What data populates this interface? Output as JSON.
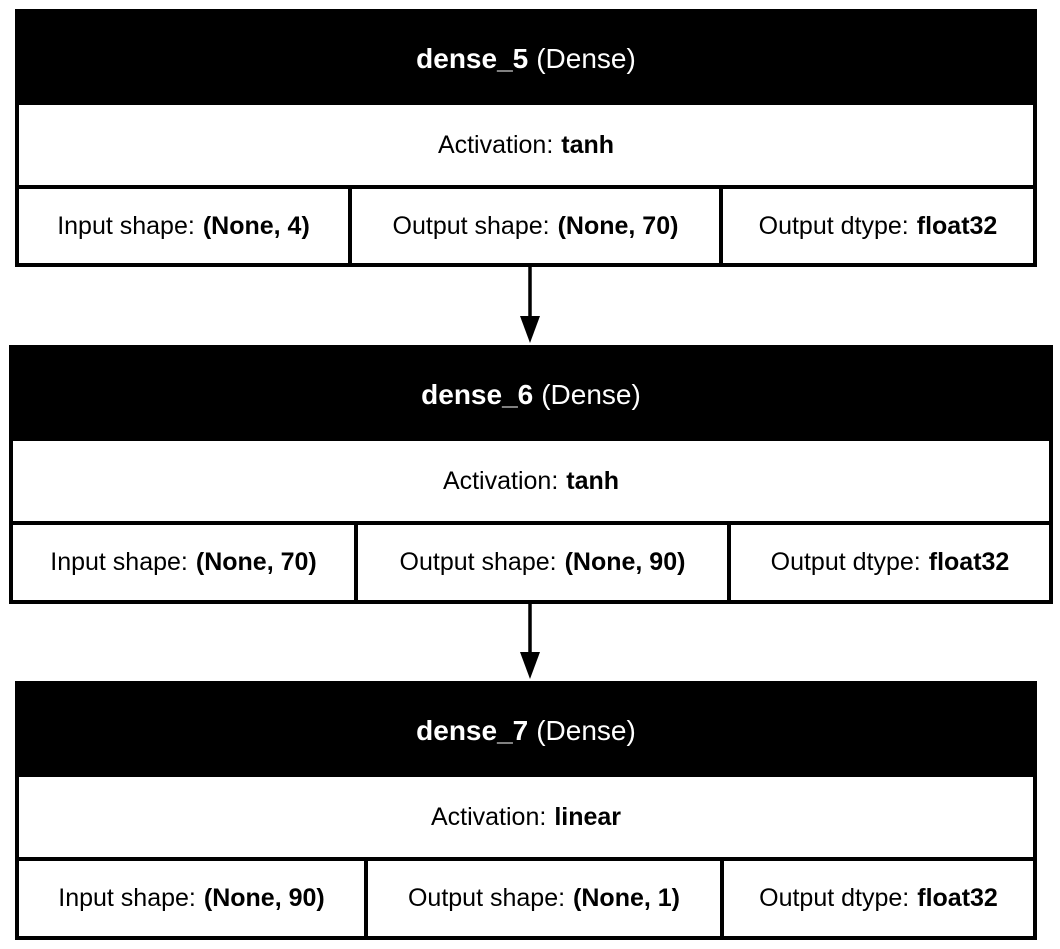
{
  "layers": [
    {
      "name": "dense_5",
      "type": "(Dense)",
      "activation_label": "Activation:",
      "activation": "tanh",
      "input_label": "Input shape:",
      "input_shape": "(None, 4)",
      "output_label": "Output shape:",
      "output_shape": "(None, 70)",
      "dtype_label": "Output dtype:",
      "dtype": "float32"
    },
    {
      "name": "dense_6",
      "type": "(Dense)",
      "activation_label": "Activation:",
      "activation": "tanh",
      "input_label": "Input shape:",
      "input_shape": "(None, 70)",
      "output_label": "Output shape:",
      "output_shape": "(None, 90)",
      "dtype_label": "Output dtype:",
      "dtype": "float32"
    },
    {
      "name": "dense_7",
      "type": "(Dense)",
      "activation_label": "Activation:",
      "activation": "linear",
      "input_label": "Input shape:",
      "input_shape": "(None, 90)",
      "output_label": "Output shape:",
      "output_shape": "(None, 1)",
      "dtype_label": "Output dtype:",
      "dtype": "float32"
    }
  ],
  "edges": [
    {
      "from": "dense_5",
      "to": "dense_6"
    },
    {
      "from": "dense_6",
      "to": "dense_7"
    }
  ],
  "colors": {
    "header_bg": "#000000",
    "header_text": "#ffffff",
    "border": "#000000",
    "background": "#ffffff"
  }
}
